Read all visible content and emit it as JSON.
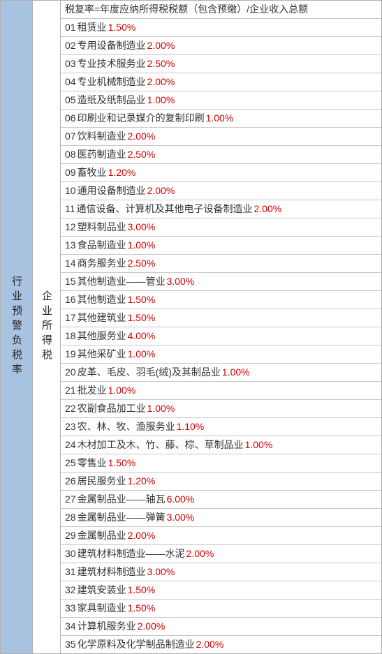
{
  "leftLabel": "行业预警负税率",
  "midLabel": "企业所得税",
  "header": "税复率=年度应纳所得税税额（包含预缴）/企业收入总额",
  "rows": [
    {
      "num": "01",
      "name": "租赁业",
      "rate": "1.50%"
    },
    {
      "num": "02",
      "name": "专用设备制造业",
      "rate": "2.00%"
    },
    {
      "num": "03",
      "name": "专业技术服务业",
      "rate": "2.50%"
    },
    {
      "num": "04",
      "name": "专业机械制造业",
      "rate": "2.00%"
    },
    {
      "num": "05",
      "name": "造纸及纸制品业",
      "rate": "1.00%"
    },
    {
      "num": "06",
      "name": "印刷业和记录媒介的复制印刷",
      "rate": "1.00%"
    },
    {
      "num": "07",
      "name": "饮料制造业",
      "rate": "2.00%"
    },
    {
      "num": "08",
      "name": "医药制造业",
      "rate": "2.50%"
    },
    {
      "num": "09",
      "name": "畜牧业",
      "rate": "1.20%"
    },
    {
      "num": "10",
      "name": "通用设备制造业",
      "rate": "2.00%"
    },
    {
      "num": "11",
      "name": "通信设备、计算机及其他电子设备制造业",
      "rate": "2.00%"
    },
    {
      "num": "12",
      "name": "塑料制品业",
      "rate": "3.00%"
    },
    {
      "num": "13",
      "name": "食品制造业",
      "rate": "1.00%"
    },
    {
      "num": "14",
      "name": "商务服务业",
      "rate": "2.50%"
    },
    {
      "num": "15",
      "name": "其他制造业——管业",
      "rate": "3.00%"
    },
    {
      "num": "16",
      "name": "其他制造业",
      "rate": "1.50%"
    },
    {
      "num": "17",
      "name": "其他建筑业",
      "rate": "1.50%"
    },
    {
      "num": "18",
      "name": "其他服务业",
      "rate": "4.00%"
    },
    {
      "num": "19",
      "name": "其他采矿业",
      "rate": "1.00%"
    },
    {
      "num": "20",
      "name": "皮革、毛皮、羽毛(绒)及其制品业",
      "rate": "1.00%"
    },
    {
      "num": "21",
      "name": "批发业",
      "rate": "1.00%"
    },
    {
      "num": "22",
      "name": "农副食品加工业",
      "rate": "1.00%"
    },
    {
      "num": "23",
      "name": "农、林、牧、渔服务业",
      "rate": "1.10%"
    },
    {
      "num": "24",
      "name": "木材加工及木、竹、藤、棕、草制品业",
      "rate": "1.00%"
    },
    {
      "num": "25",
      "name": "零售业",
      "rate": "1.50%"
    },
    {
      "num": "26",
      "name": "居民服务业",
      "rate": "1.20%"
    },
    {
      "num": "27",
      "name": "金属制品业——轴瓦",
      "rate": "6.00%"
    },
    {
      "num": "28",
      "name": "金属制品业——弹簧",
      "rate": "3.00%"
    },
    {
      "num": "29",
      "name": "金属制品业",
      "rate": "2.00%",
      "nospace": true
    },
    {
      "num": "30",
      "name": "建筑材料制造业——水泥",
      "rate": "2.00%"
    },
    {
      "num": "31",
      "name": "建筑材料制造业",
      "rate": "3.00%"
    },
    {
      "num": "32",
      "name": "建筑安装业",
      "rate": "1.50%"
    },
    {
      "num": "33",
      "name": "家具制造业",
      "rate": "1.50%"
    },
    {
      "num": "34",
      "name": "计算机服务业",
      "rate": "2.00%"
    },
    {
      "num": "35",
      "name": "化学原料及化学制品制造业",
      "rate": "2.00%"
    }
  ],
  "colors": {
    "leftBg": "#a8c3df",
    "border": "#b0b0b0",
    "rateColor": "#d00000",
    "textColor": "#333333"
  }
}
